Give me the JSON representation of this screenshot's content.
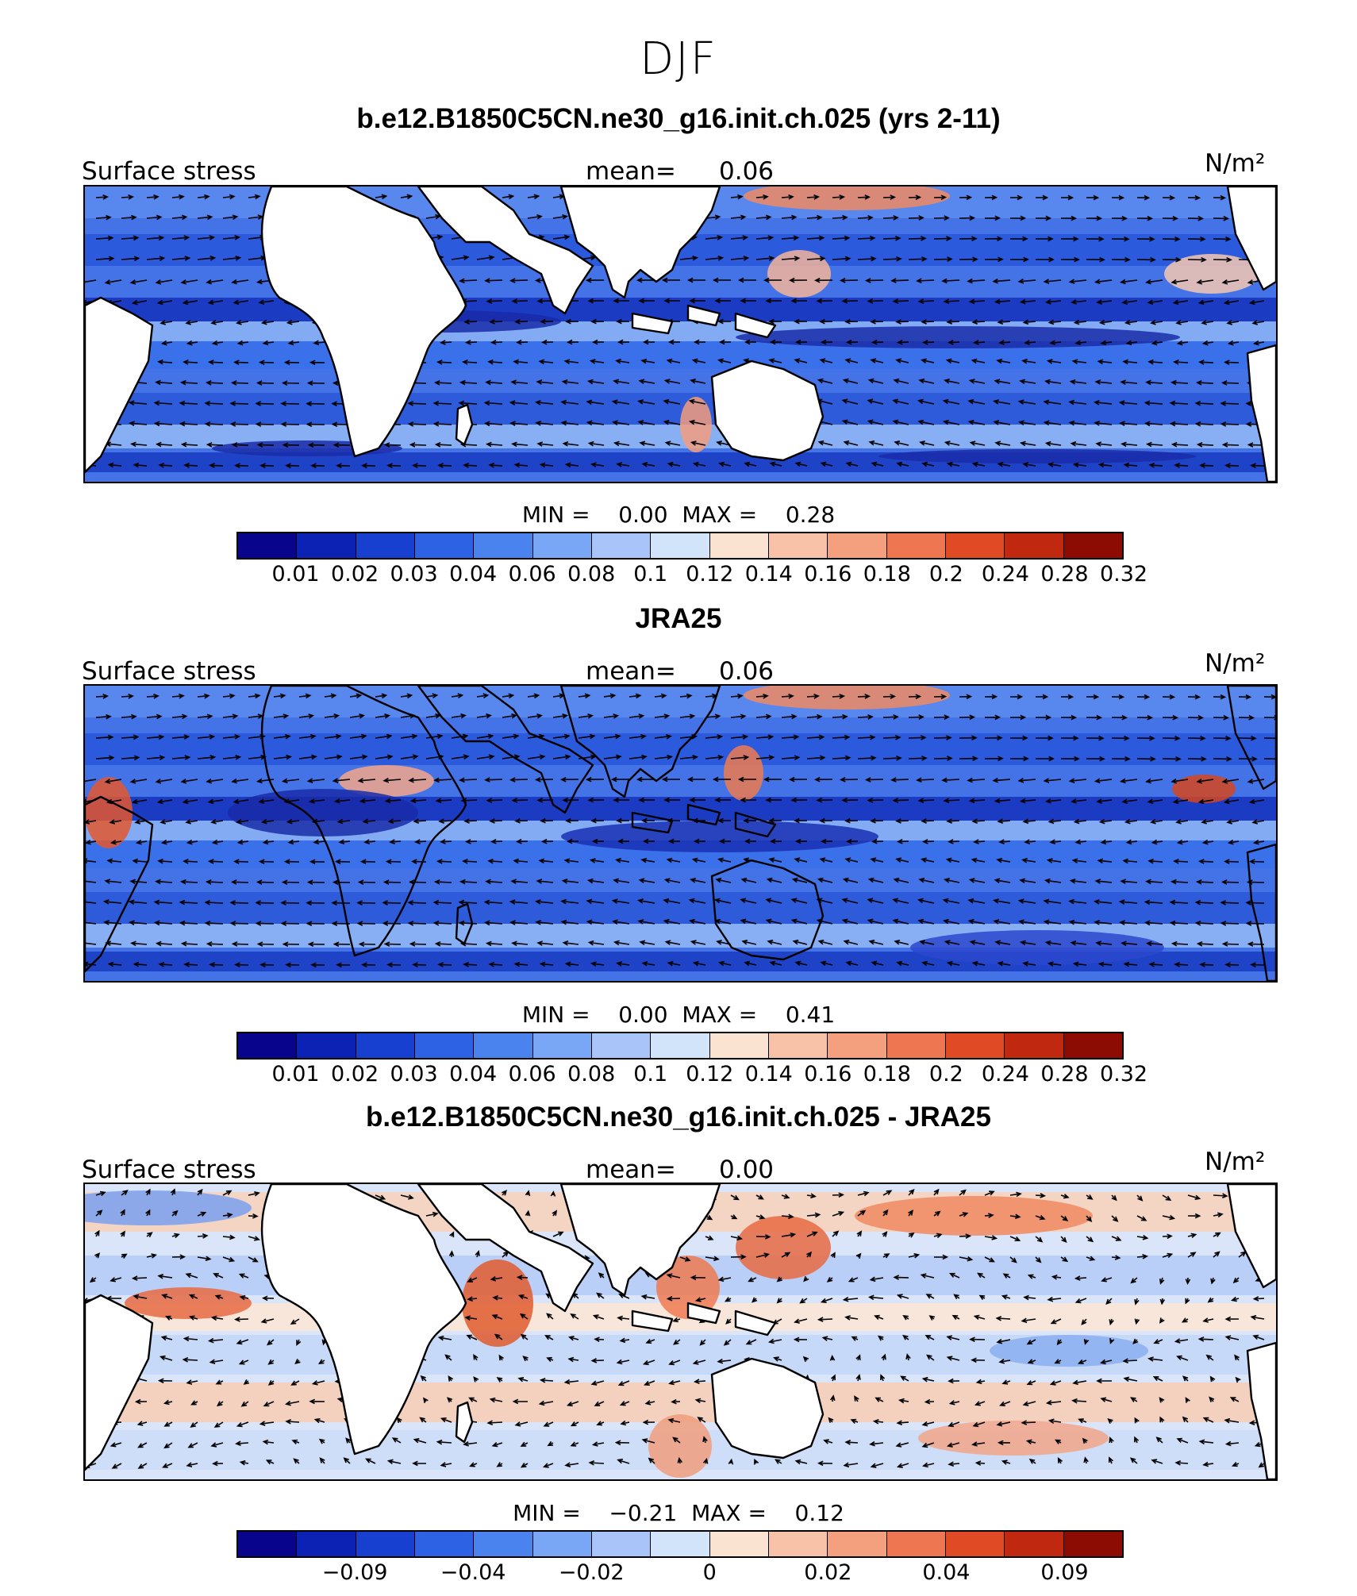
{
  "title": "DJF",
  "panels": [
    {
      "title": "b.e12.B1850C5CN.ne30_g16.init.ch.025 (yrs 2-11)",
      "left_label": "Surface stress",
      "mean_label": "mean=",
      "mean_value": "0.06",
      "unit": "N/m²",
      "min_label": "MIN =",
      "min_value": "0.00",
      "max_label": "MAX =",
      "max_value": "0.28",
      "colorbar_labels": [
        "0.01",
        "0.02",
        "0.03",
        "0.04",
        "0.06",
        "0.08",
        "0.1",
        "0.12",
        "0.14",
        "0.16",
        "0.18",
        "0.2",
        "0.24",
        "0.28",
        "0.32"
      ]
    },
    {
      "title": "JRA25",
      "left_label": "Surface stress",
      "mean_label": "mean=",
      "mean_value": "0.06",
      "unit": "N/m²",
      "min_label": "MIN =",
      "min_value": "0.00",
      "max_label": "MAX =",
      "max_value": "0.41",
      "colorbar_labels": [
        "0.01",
        "0.02",
        "0.03",
        "0.04",
        "0.06",
        "0.08",
        "0.1",
        "0.12",
        "0.14",
        "0.16",
        "0.18",
        "0.2",
        "0.24",
        "0.28",
        "0.32"
      ]
    },
    {
      "title": "b.e12.B1850C5CN.ne30_g16.init.ch.025 - JRA25",
      "left_label": "Surface stress",
      "mean_label": "mean=",
      "mean_value": "0.00",
      "unit": "N/m²",
      "min_label": "MIN =",
      "min_value": "−0.21",
      "max_label": "MAX =",
      "max_value": "0.12",
      "colorbar_labels": [
        "−0.09",
        "−0.04",
        "−0.02",
        "0",
        "0.02",
        "0.04",
        "0.09"
      ]
    }
  ],
  "colorbar_colors": [
    "#08048c",
    "#0c22b4",
    "#1840d0",
    "#2e62e4",
    "#4a82ee",
    "#7aa6f6",
    "#a8c4f8",
    "#d2e4fa",
    "#fbe3d2",
    "#f8c2a8",
    "#f4a07e",
    "#ee7650",
    "#e04a24",
    "#c02810",
    "#8c0c04"
  ]
}
